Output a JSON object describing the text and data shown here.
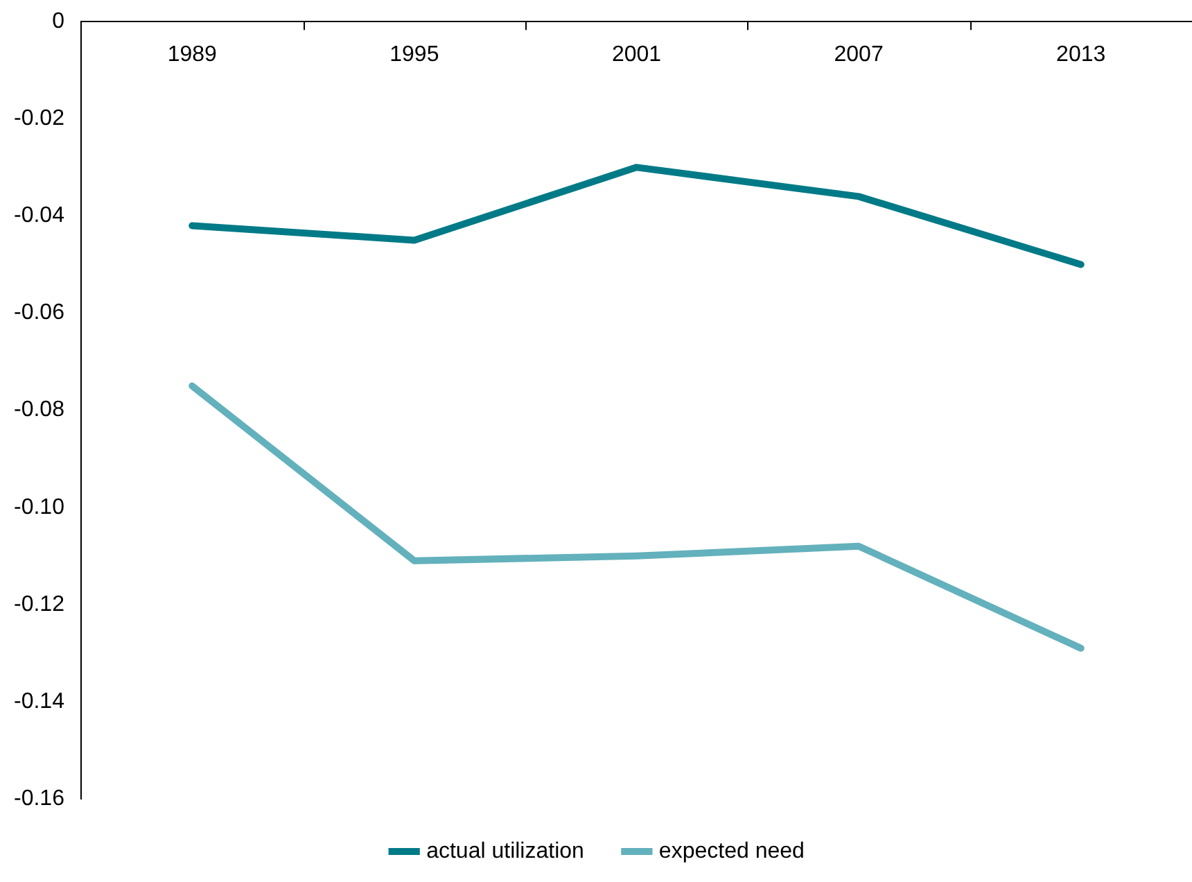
{
  "chart_data": {
    "type": "line",
    "categories": [
      "1989",
      "1995",
      "2001",
      "2007",
      "2013"
    ],
    "series": [
      {
        "name": "actual utilization",
        "color": "#007a87",
        "values": [
          -0.042,
          -0.045,
          -0.03,
          -0.036,
          -0.05
        ]
      },
      {
        "name": "expected need",
        "color": "#63b1bc",
        "values": [
          -0.075,
          -0.111,
          -0.11,
          -0.108,
          -0.129
        ]
      }
    ],
    "ylim": [
      -0.16,
      0
    ],
    "yticks": [
      {
        "value": -0.16,
        "label": "-0.16"
      },
      {
        "value": -0.14,
        "label": "-0.14"
      },
      {
        "value": -0.12,
        "label": "-0.12"
      },
      {
        "value": -0.1,
        "label": "-0.10"
      },
      {
        "value": -0.08,
        "label": "-0.08"
      },
      {
        "value": -0.06,
        "label": "-0.06"
      },
      {
        "value": -0.04,
        "label": "-0.04"
      },
      {
        "value": -0.02,
        "label": "-0.02"
      },
      0
    ],
    "grid": false,
    "legend": "bottom",
    "marker": "none",
    "line_style": "solid"
  }
}
